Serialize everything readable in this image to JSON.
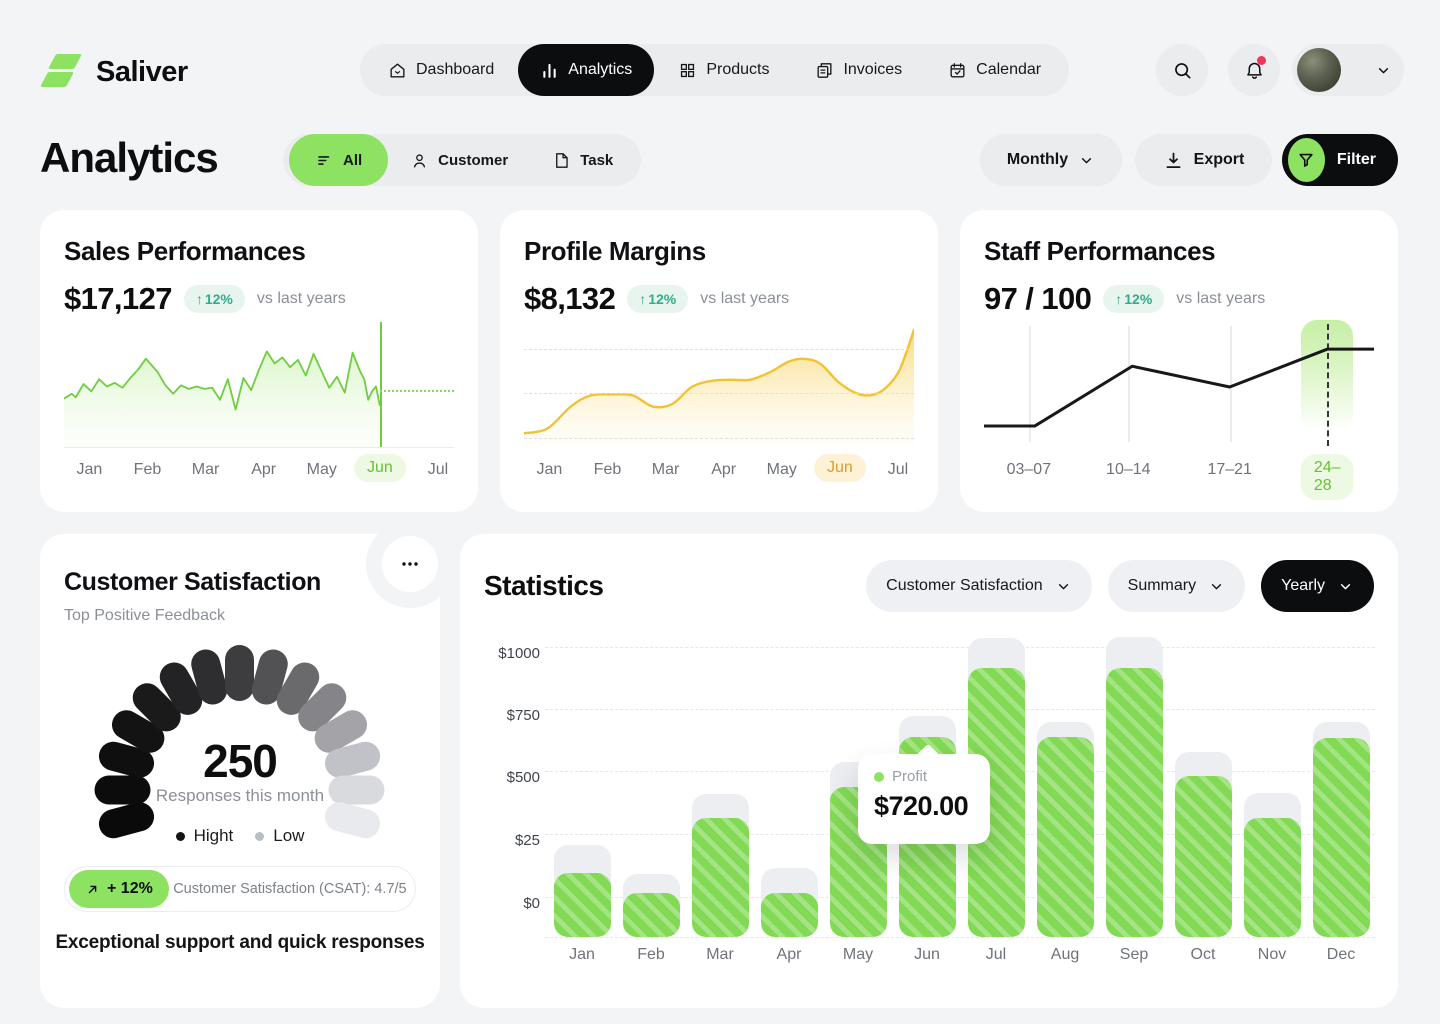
{
  "colors": {
    "accent_green": "#8ee262",
    "bar_green": "#82d954",
    "mint_text": "#33ab8a",
    "mint_bg": "#e8f5ef",
    "amber": "#f2c233",
    "dark": "#0c0d0f",
    "gray_text": "#8b8f96",
    "page_bg": "#f3f4f6",
    "pill_bg": "#ebecee"
  },
  "brand": {
    "name": "Saliver"
  },
  "nav": {
    "items": [
      {
        "label": "Dashboard",
        "icon": "home",
        "active": false
      },
      {
        "label": "Analytics",
        "icon": "chart-bars",
        "active": true
      },
      {
        "label": "Products",
        "icon": "grid",
        "active": false
      },
      {
        "label": "Invoices",
        "icon": "invoice",
        "active": false
      },
      {
        "label": "Calendar",
        "icon": "calendar",
        "active": false
      }
    ]
  },
  "page": {
    "title": "Analytics"
  },
  "filter_tabs": [
    {
      "label": "All",
      "icon": "filter-lines",
      "active": true
    },
    {
      "label": "Customer",
      "icon": "user",
      "active": false
    },
    {
      "label": "Task",
      "icon": "task",
      "active": false
    }
  ],
  "actions": {
    "monthly": "Monthly",
    "export": "Export",
    "filter": "Filter"
  },
  "cards": {
    "sales": {
      "title": "Sales Performances",
      "value": "$17,127",
      "delta_arrow": "↑",
      "delta": "12%",
      "compare": "vs last years"
    },
    "margins": {
      "title": "Profile Margins",
      "value": "$8,132",
      "delta_arrow": "↑",
      "delta": "12%",
      "compare": "vs last years"
    },
    "staff": {
      "title": "Staff Performances",
      "value": "97 / 100",
      "delta_arrow": "↑",
      "delta": "12%",
      "compare": "vs last years"
    }
  },
  "satisfaction": {
    "title": "Customer Satisfaction",
    "subtitle": "Top Positive Feedback",
    "count": "250",
    "count_label": "Responses this month",
    "legend": [
      {
        "label": "Hight",
        "color": "#121315"
      },
      {
        "label": "Low",
        "color": "#b7bfc5"
      }
    ],
    "badge_arrow": "↗",
    "badge": "+ 12%",
    "csat": "Customer Satisfaction (CSAT): 4.7/5",
    "note": "Exceptional support and quick responses",
    "gauge_segments": 15,
    "gauge_colors": [
      "#0a0a0b",
      "#0c0c0d",
      "#0f0f10",
      "#131314",
      "#1a1a1b",
      "#232325",
      "#2e2e30",
      "#3d3d3f",
      "#525254",
      "#6a6a6d",
      "#858589",
      "#a3a3a8",
      "#c0c2c7",
      "#d8dade",
      "#e9eaee"
    ]
  },
  "statistics": {
    "title": "Statistics",
    "dropdowns": [
      {
        "label": "Customer Satisfaction",
        "variant": "light"
      },
      {
        "label": "Summary",
        "variant": "light"
      },
      {
        "label": "Yearly",
        "variant": "dark"
      }
    ],
    "tooltip": {
      "label": "Profit",
      "value": "$720.00"
    }
  },
  "chart_data": [
    {
      "id": "sales",
      "type": "line",
      "title": "Sales Performances",
      "headline_value": "$17,127",
      "x": [
        "Jan",
        "Feb",
        "Mar",
        "Apr",
        "May",
        "Jun",
        "Jul"
      ],
      "active_x": "Jun",
      "active_index": 5,
      "line_color": "#6fcd3f",
      "points_pct": [
        [
          0,
          60
        ],
        [
          2,
          56
        ],
        [
          3,
          59
        ],
        [
          5,
          48
        ],
        [
          7,
          54
        ],
        [
          9,
          44
        ],
        [
          11,
          50
        ],
        [
          13,
          47
        ],
        [
          15,
          51
        ],
        [
          17,
          43
        ],
        [
          19,
          36
        ],
        [
          21,
          27
        ],
        [
          24,
          38
        ],
        [
          26,
          49
        ],
        [
          28,
          56
        ],
        [
          30,
          49
        ],
        [
          32,
          52
        ],
        [
          34,
          50
        ],
        [
          36,
          52
        ],
        [
          38,
          51
        ],
        [
          40,
          61
        ],
        [
          42,
          44
        ],
        [
          44,
          69
        ],
        [
          46,
          43
        ],
        [
          48,
          53
        ],
        [
          50,
          36
        ],
        [
          52,
          21
        ],
        [
          54,
          31
        ],
        [
          56,
          26
        ],
        [
          58,
          34
        ],
        [
          60,
          28
        ],
        [
          62,
          41
        ],
        [
          64,
          23
        ],
        [
          66,
          37
        ],
        [
          68,
          51
        ],
        [
          70,
          42
        ],
        [
          72,
          55
        ],
        [
          74,
          22
        ],
        [
          76,
          38
        ],
        [
          77,
          44
        ],
        [
          78,
          61
        ],
        [
          79,
          54
        ],
        [
          80,
          50
        ],
        [
          81,
          66
        ]
      ],
      "marker_x_pct": 81,
      "projection_y_pct": 53
    },
    {
      "id": "margins",
      "type": "area",
      "title": "Profile Margins",
      "headline_value": "$8,132",
      "x": [
        "Jan",
        "Feb",
        "Mar",
        "Apr",
        "May",
        "Jun",
        "Jul"
      ],
      "active_x": "Jun",
      "active_index": 5,
      "line_color": "#f2c233",
      "points_pct": [
        [
          0,
          88
        ],
        [
          6,
          84
        ],
        [
          12,
          66
        ],
        [
          17,
          57
        ],
        [
          23,
          56
        ],
        [
          28,
          57
        ],
        [
          33,
          66
        ],
        [
          38,
          64
        ],
        [
          43,
          50
        ],
        [
          48,
          45
        ],
        [
          53,
          44
        ],
        [
          58,
          44
        ],
        [
          63,
          38
        ],
        [
          68,
          29
        ],
        [
          72,
          27
        ],
        [
          76,
          31
        ],
        [
          81,
          47
        ],
        [
          86,
          56
        ],
        [
          90,
          56
        ],
        [
          93,
          50
        ],
        [
          96,
          38
        ],
        [
          98,
          22
        ],
        [
          100,
          3
        ]
      ],
      "gridlines_y_pct": [
        19,
        55,
        92
      ]
    },
    {
      "id": "staff",
      "type": "line",
      "title": "Staff Performances",
      "headline_value": "97 / 100",
      "categories": [
        "03–07",
        "10–14",
        "17–21",
        "24–28"
      ],
      "active_category": "24–28",
      "active_index": 3,
      "line_color": "#17181a",
      "category_x_pct": [
        11.5,
        37,
        63,
        88
      ],
      "points_pct": [
        [
          0,
          82
        ],
        [
          13,
          82
        ],
        [
          38,
          33
        ],
        [
          63,
          50
        ],
        [
          88,
          19
        ],
        [
          100,
          19
        ]
      ]
    },
    {
      "id": "statistics",
      "type": "bar",
      "title": "Statistics",
      "categories": [
        "Jan",
        "Feb",
        "Mar",
        "Apr",
        "May",
        "Jun",
        "Jul",
        "Aug",
        "Sep",
        "Oct",
        "Nov",
        "Dec"
      ],
      "series": [
        {
          "name": "Profit",
          "values": [
            230,
            160,
            430,
            160,
            540,
            720,
            970,
            720,
            970,
            580,
            430,
            715
          ]
        },
        {
          "name": "Track background",
          "values": [
            330,
            225,
            515,
            250,
            630,
            795,
            1075,
            775,
            1080,
            665,
            520,
            775
          ]
        }
      ],
      "ylabels": [
        "$1000",
        "$750",
        "$500",
        "$25",
        "$0"
      ],
      "tooltip": {
        "category": "Jun",
        "series": "Profit",
        "value": "$720.00",
        "category_index": 5
      },
      "grid": "dashed-horizontal",
      "legend_position": "none"
    }
  ]
}
